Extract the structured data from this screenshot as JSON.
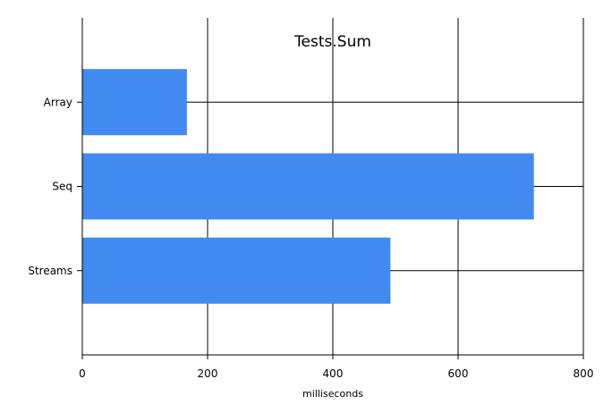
{
  "chart_data": {
    "type": "bar",
    "orientation": "horizontal",
    "title": "Tests.Sum",
    "xlabel": "milliseconds",
    "ylabel": "",
    "categories": [
      "Array",
      "Seq",
      "Streams"
    ],
    "values": [
      167,
      721,
      492
    ],
    "xlim": [
      0,
      800
    ],
    "xticks": [
      0,
      200,
      400,
      600,
      800
    ],
    "grid": true,
    "bar_color": "#418af0",
    "grid_color": "#000000"
  }
}
